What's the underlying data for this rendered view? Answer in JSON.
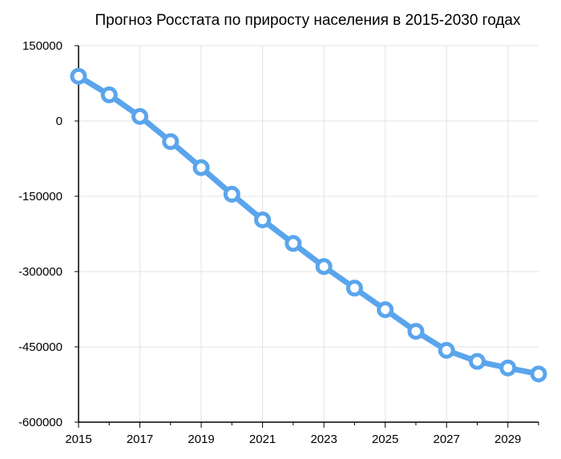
{
  "chart_data": {
    "type": "line",
    "title": "Прогноз Росстата по приросту населения в 2015-2030 годах",
    "xlabel": "",
    "ylabel": "",
    "x": [
      2015,
      2016,
      2017,
      2018,
      2019,
      2020,
      2021,
      2022,
      2023,
      2024,
      2025,
      2026,
      2027,
      2028,
      2029,
      2030
    ],
    "series": [
      {
        "values": [
          89000,
          52000,
          9000,
          -41000,
          -93000,
          -146000,
          -197000,
          -244000,
          -290000,
          -333000,
          -376000,
          -419000,
          -457000,
          -479000,
          -492000,
          -504000
        ],
        "color": "#5aa5ec"
      }
    ],
    "xlim": [
      2015,
      2030
    ],
    "ylim": [
      -600000,
      150000
    ],
    "yticks": [
      150000,
      0,
      -150000,
      -300000,
      -450000,
      -600000
    ],
    "ytick_labels": [
      "150000",
      "0",
      "-150000",
      "-300000",
      "-450000",
      "-600000"
    ],
    "xticks": [
      2015,
      2017,
      2019,
      2021,
      2023,
      2025,
      2027,
      2029
    ],
    "xtick_labels": [
      "2015",
      "2017",
      "2019",
      "2021",
      "2023",
      "2025",
      "2027",
      "2029"
    ],
    "grid": true,
    "legend": "none",
    "grid_color": "#e3e3e3",
    "axis_color": "#000000"
  }
}
